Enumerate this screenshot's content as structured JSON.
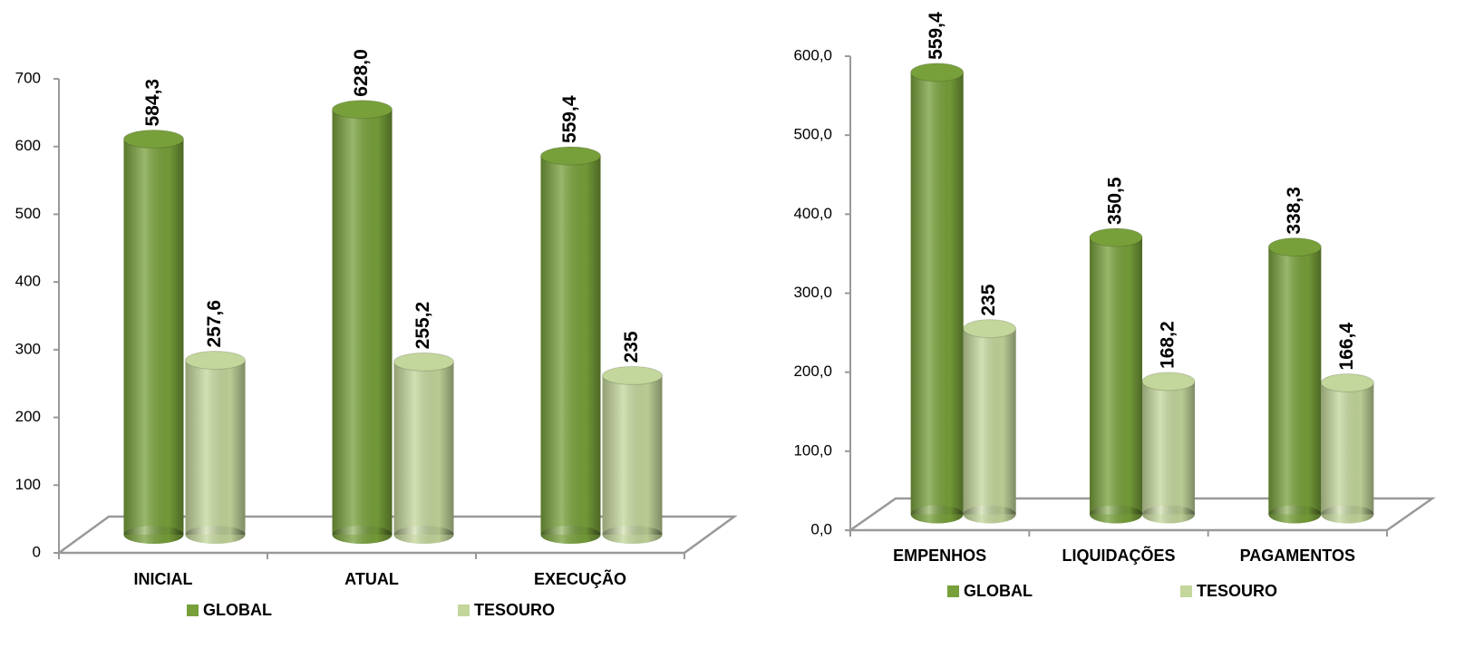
{
  "chart_data": [
    {
      "type": "bar",
      "categories": [
        "INICIAL",
        "ATUAL",
        "EXECUÇÃO"
      ],
      "series": [
        {
          "name": "GLOBAL",
          "color": "#77a03a",
          "values": [
            584.3,
            628.0,
            559.4
          ],
          "value_labels": [
            "584,3",
            "628,0",
            "559,4"
          ]
        },
        {
          "name": "TESOURO",
          "color": "#c3d69b",
          "values": [
            257.6,
            255.2,
            235
          ],
          "value_labels": [
            "257,6",
            "255,2",
            "235"
          ]
        }
      ],
      "ylim": [
        0,
        700
      ],
      "yticks": [
        0,
        100,
        200,
        300,
        400,
        500,
        600,
        700
      ]
    },
    {
      "type": "bar",
      "categories": [
        "EMPENHOS",
        "LIQUIDAÇÕES",
        "PAGAMENTOS"
      ],
      "series": [
        {
          "name": "GLOBAL",
          "color": "#77a03a",
          "values": [
            559.4,
            350.5,
            338.3
          ],
          "value_labels": [
            "559,4",
            "350,5",
            "338,3"
          ]
        },
        {
          "name": "TESOURO",
          "color": "#c3d69b",
          "values": [
            235,
            168.2,
            166.4
          ],
          "value_labels": [
            "235",
            "168,2",
            "166,4"
          ]
        }
      ],
      "ylim": [
        0,
        600
      ],
      "yticks": [
        {
          "value": 0,
          "label": "0,0"
        },
        {
          "value": 100,
          "label": "100,0"
        },
        {
          "value": 200,
          "label": "200,0"
        },
        {
          "value": 300,
          "label": "300,0"
        },
        {
          "value": 400,
          "label": "400,0"
        },
        {
          "value": 500,
          "label": "500,0"
        },
        {
          "value": 600,
          "label": "600,0"
        }
      ]
    }
  ]
}
